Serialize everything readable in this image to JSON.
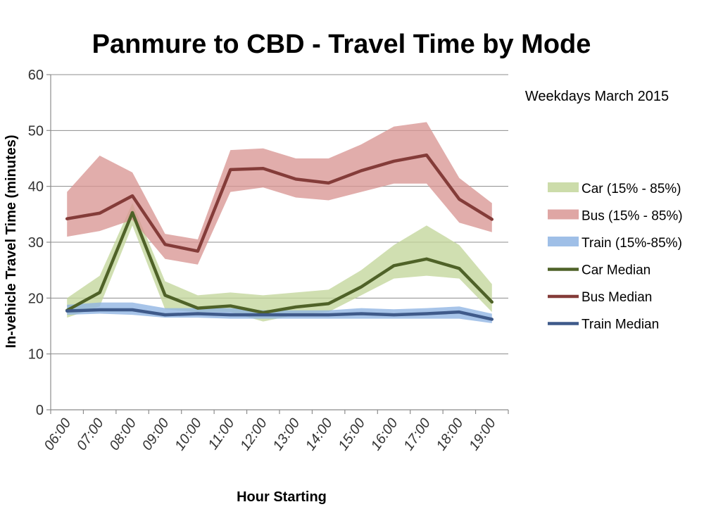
{
  "chart_data": {
    "type": "area",
    "title": "Panmure to CBD - Travel Time by Mode",
    "subtitle": "Weekdays March 2015",
    "xlabel": "Hour Starting",
    "ylabel": "In-vehicle Travel Time (minutes)",
    "ylim": [
      0,
      60
    ],
    "yticks": [
      0,
      10,
      20,
      30,
      40,
      50,
      60
    ],
    "grid": true,
    "legend_position": "right",
    "categories": [
      "06:00",
      "07:00",
      "08:00",
      "09:00",
      "10:00",
      "11:00",
      "12:00",
      "13:00",
      "14:00",
      "15:00",
      "16:00",
      "17:00",
      "18:00",
      "19:00"
    ],
    "bands": [
      {
        "name": "Car (15% - 85%)",
        "color": "#c3d69b",
        "low": [
          16.5,
          18.5,
          33.0,
          18.0,
          17.5,
          17.5,
          15.8,
          17.0,
          17.5,
          20.5,
          23.5,
          24.0,
          23.5,
          17.5
        ],
        "high": [
          20.0,
          24.0,
          37.0,
          23.0,
          20.5,
          21.0,
          20.5,
          21.0,
          21.5,
          25.0,
          29.5,
          33.0,
          29.5,
          22.5
        ]
      },
      {
        "name": "Bus (15% - 85%)",
        "color": "#d99694",
        "low": [
          31.0,
          32.0,
          34.0,
          27.0,
          26.0,
          39.0,
          39.8,
          38.0,
          37.5,
          39.0,
          40.5,
          40.5,
          33.5,
          31.8
        ],
        "high": [
          39.0,
          45.5,
          42.5,
          31.5,
          30.5,
          46.5,
          46.8,
          45.0,
          45.0,
          47.5,
          50.7,
          51.5,
          41.5,
          37.0
        ]
      },
      {
        "name": "Train (15%-85%)",
        "color": "#8eb4e3",
        "low": [
          17.0,
          17.2,
          17.0,
          16.5,
          16.5,
          16.3,
          16.3,
          16.3,
          16.3,
          16.3,
          16.3,
          16.3,
          16.3,
          15.5
        ],
        "high": [
          18.8,
          19.2,
          19.2,
          18.2,
          18.2,
          18.2,
          17.8,
          17.8,
          17.8,
          18.2,
          18.0,
          18.2,
          18.5,
          17.2
        ]
      }
    ],
    "series": [
      {
        "name": "Car Median",
        "color": "#4f6228",
        "values": [
          17.8,
          21.0,
          35.3,
          20.5,
          18.2,
          18.6,
          17.4,
          18.4,
          19.0,
          22.0,
          25.8,
          27.0,
          25.3,
          19.3
        ]
      },
      {
        "name": "Bus Median",
        "color": "#843c39",
        "values": [
          34.2,
          35.2,
          38.3,
          29.6,
          28.4,
          43.0,
          43.2,
          41.3,
          40.6,
          42.8,
          44.5,
          45.6,
          37.7,
          34.1
        ]
      },
      {
        "name": "Train Median",
        "color": "#3f5a8a",
        "values": [
          17.7,
          17.9,
          17.9,
          17.0,
          17.2,
          17.0,
          17.0,
          17.0,
          17.0,
          17.2,
          17.0,
          17.2,
          17.5,
          16.2
        ]
      }
    ]
  }
}
